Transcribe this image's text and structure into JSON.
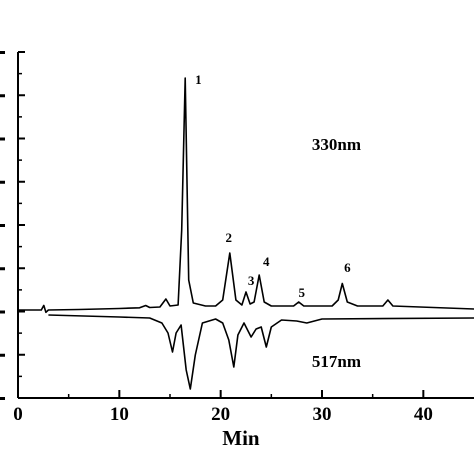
{
  "chart_data": {
    "type": "line",
    "xlabel": "Min",
    "ylabel": "",
    "xlim": [
      0,
      45
    ],
    "x_ticks": [
      0,
      10,
      20,
      30,
      40
    ],
    "x_tick_labels": [
      "0",
      "10",
      "20",
      "30",
      "40"
    ],
    "y_tick_count": 9,
    "grid": false,
    "series": [
      {
        "name": "330nm",
        "direction": "up",
        "points": [
          [
            0.0,
            0
          ],
          [
            2.3,
            0
          ],
          [
            2.55,
            4.6
          ],
          [
            2.75,
            -2.3
          ],
          [
            3.0,
            0
          ],
          [
            6.0,
            0.5
          ],
          [
            10.0,
            1.5
          ],
          [
            12.0,
            2.2
          ],
          [
            12.6,
            4.5
          ],
          [
            13.0,
            2.5
          ],
          [
            14.0,
            3.0
          ],
          [
            14.6,
            11.0
          ],
          [
            15.0,
            4.0
          ],
          [
            15.8,
            5.0
          ],
          [
            16.15,
            80.0
          ],
          [
            16.5,
            232.0
          ],
          [
            16.85,
            30.0
          ],
          [
            17.3,
            7.0
          ],
          [
            18.5,
            4.0
          ],
          [
            19.5,
            4.0
          ],
          [
            20.2,
            10.0
          ],
          [
            20.9,
            57.0
          ],
          [
            21.5,
            10.0
          ],
          [
            22.1,
            5.0
          ],
          [
            22.5,
            18.0
          ],
          [
            22.9,
            6.0
          ],
          [
            23.3,
            8.0
          ],
          [
            23.8,
            35.0
          ],
          [
            24.3,
            8.0
          ],
          [
            25.0,
            4.0
          ],
          [
            27.2,
            4.0
          ],
          [
            27.7,
            8.0
          ],
          [
            28.2,
            4.0
          ],
          [
            31.0,
            4.0
          ],
          [
            31.6,
            10.0
          ],
          [
            32.0,
            26.5
          ],
          [
            32.5,
            8.0
          ],
          [
            33.5,
            4.0
          ],
          [
            36.0,
            4.0
          ],
          [
            36.5,
            10.0
          ],
          [
            37.0,
            4.0
          ],
          [
            45.0,
            1.0
          ]
        ]
      },
      {
        "name": "517nm",
        "direction": "down",
        "points": [
          [
            3.0,
            0
          ],
          [
            10.0,
            -2.0
          ],
          [
            13.0,
            -3.0
          ],
          [
            14.2,
            -8.0
          ],
          [
            14.8,
            -18.0
          ],
          [
            15.25,
            -37.0
          ],
          [
            15.6,
            -18.0
          ],
          [
            16.1,
            -10.0
          ],
          [
            16.6,
            -55.0
          ],
          [
            17.0,
            -74.0
          ],
          [
            17.5,
            -40.0
          ],
          [
            18.2,
            -8.0
          ],
          [
            19.5,
            -4.0
          ],
          [
            20.2,
            -8.0
          ],
          [
            20.8,
            -25.0
          ],
          [
            21.3,
            -52.0
          ],
          [
            21.7,
            -20.0
          ],
          [
            22.3,
            -8.0
          ],
          [
            23.0,
            -22.0
          ],
          [
            23.5,
            -14.0
          ],
          [
            24.0,
            -12.0
          ],
          [
            24.5,
            -32.0
          ],
          [
            25.0,
            -12.0
          ],
          [
            26.0,
            -5.0
          ],
          [
            27.5,
            -6.0
          ],
          [
            28.5,
            -8.0
          ],
          [
            30.0,
            -4.0
          ],
          [
            45.0,
            -3.0
          ]
        ]
      }
    ],
    "annotations": [
      {
        "text": "1",
        "x": 17.8,
        "y": 226
      },
      {
        "text": "2",
        "x": 20.8,
        "y": 68
      },
      {
        "text": "3",
        "x": 23.0,
        "y": 25
      },
      {
        "text": "4",
        "x": 24.5,
        "y": 44
      },
      {
        "text": "5",
        "x": 28.0,
        "y": 13
      },
      {
        "text": "6",
        "x": 32.5,
        "y": 38
      },
      {
        "text": "330nm",
        "x": 29.0,
        "y": 160
      },
      {
        "text": "517nm",
        "x": 29.0,
        "y": -52
      }
    ]
  }
}
